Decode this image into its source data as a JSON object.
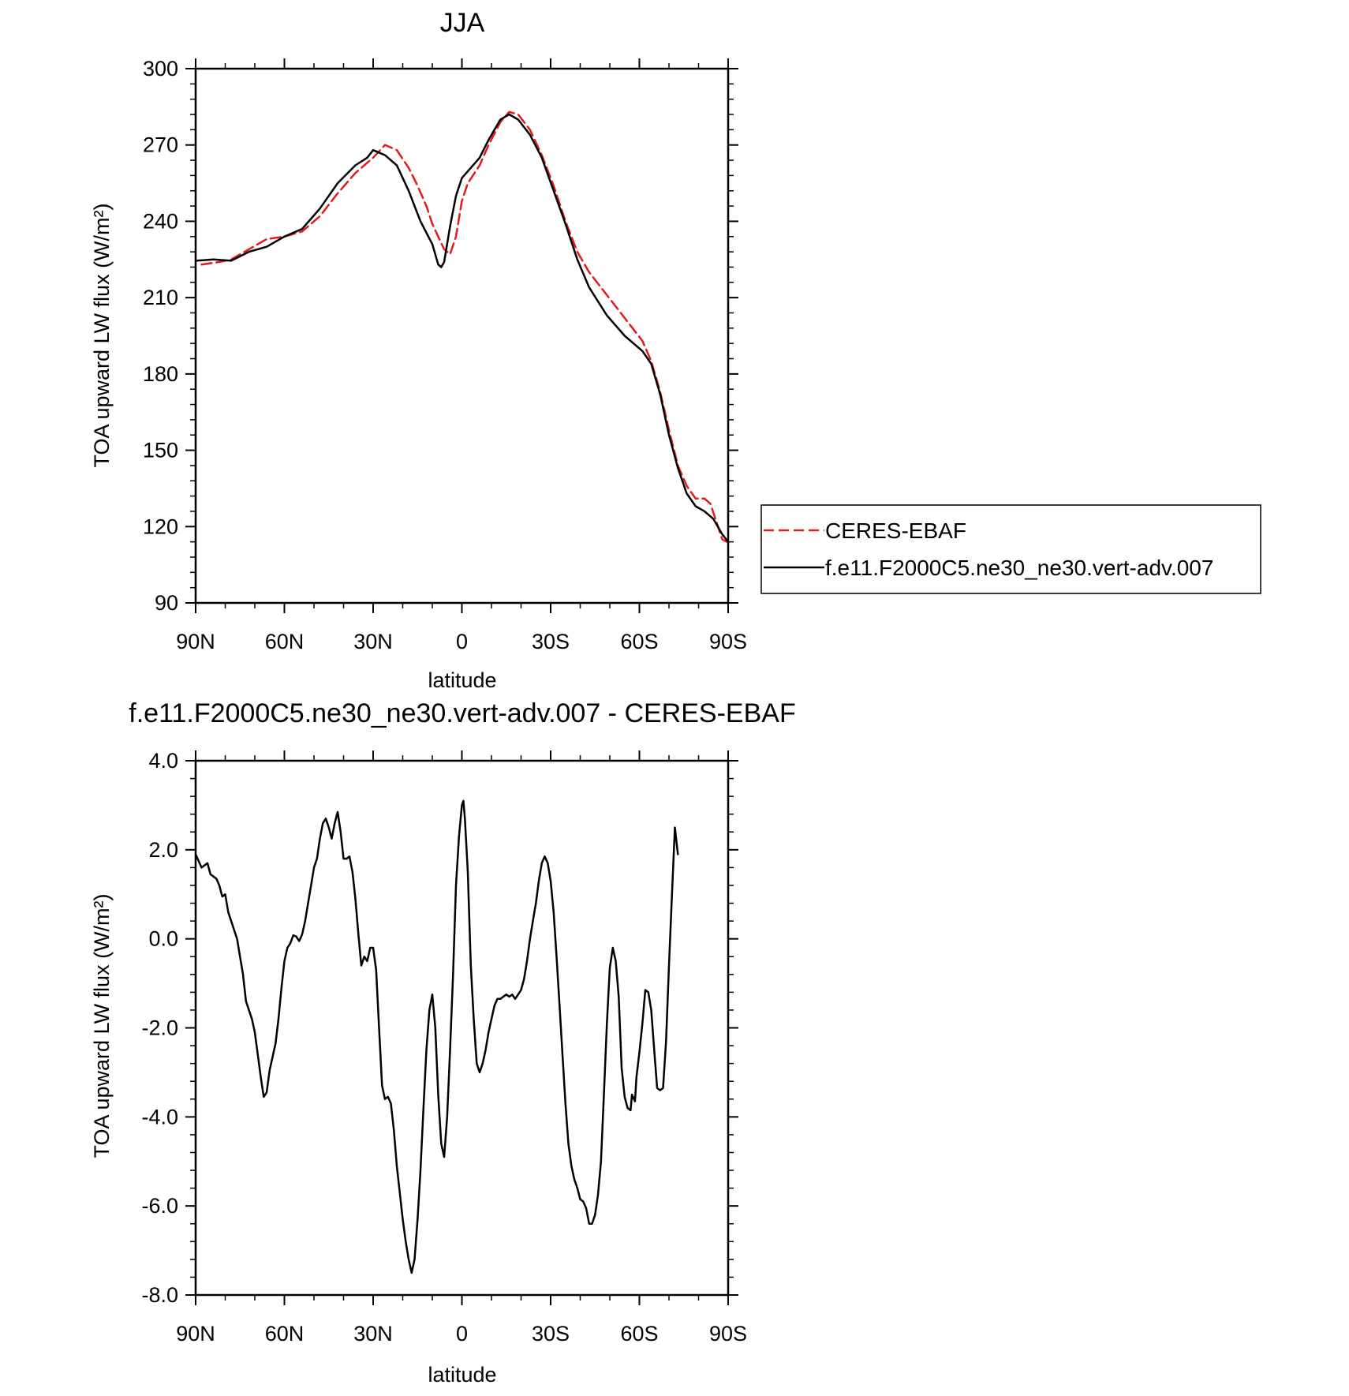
{
  "chart_data": [
    {
      "type": "line",
      "title": "JJA",
      "xlabel": "latitude",
      "ylabel": "TOA upward LW flux (W/m²)",
      "ylim": [
        90,
        300
      ],
      "xlim": [
        90,
        -90
      ],
      "xticks": [
        90,
        60,
        30,
        0,
        -30,
        -60,
        -90
      ],
      "xtick_labels": [
        "90N",
        "60N",
        "30N",
        "0",
        "30S",
        "60S",
        "90S"
      ],
      "yticks": [
        90,
        120,
        150,
        180,
        210,
        240,
        270,
        300
      ],
      "ytick_labels": [
        "90",
        "120",
        "150",
        "180",
        "210",
        "240",
        "270",
        "300"
      ],
      "legend": "right",
      "series": [
        {
          "name": "CERES-EBAF",
          "style": "dashed",
          "color": "#e41a1c",
          "points": [
            [
              88,
              223
            ],
            [
              82,
              224
            ],
            [
              78,
              225
            ],
            [
              72,
              229
            ],
            [
              66,
              233
            ],
            [
              60,
              234
            ],
            [
              54,
              236
            ],
            [
              48,
              242
            ],
            [
              42,
              251
            ],
            [
              36,
              259
            ],
            [
              30,
              265
            ],
            [
              26,
              270
            ],
            [
              22,
              268
            ],
            [
              18,
              261
            ],
            [
              15,
              254
            ],
            [
              12,
              246
            ],
            [
              10,
              239
            ],
            [
              6,
              229
            ],
            [
              4,
              227
            ],
            [
              2,
              234
            ],
            [
              0,
              248
            ],
            [
              -2,
              255
            ],
            [
              -6,
              262
            ],
            [
              -9,
              270
            ],
            [
              -13,
              279
            ],
            [
              -16,
              283
            ],
            [
              -19,
              282
            ],
            [
              -23,
              276
            ],
            [
              -27,
              266
            ],
            [
              -31,
              254
            ],
            [
              -35,
              240
            ],
            [
              -39,
              228
            ],
            [
              -43,
              220
            ],
            [
              -49,
              211
            ],
            [
              -55,
              202
            ],
            [
              -61,
              193
            ],
            [
              -64,
              185
            ],
            [
              -67,
              173
            ],
            [
              -70,
              158
            ],
            [
              -73,
              144
            ],
            [
              -76,
              136
            ],
            [
              -79,
              131
            ],
            [
              -82,
              131
            ],
            [
              -84,
              129
            ],
            [
              -86,
              122
            ],
            [
              -88,
              115
            ],
            [
              -89.5,
              114
            ]
          ]
        },
        {
          "name": "f.e11.F2000C5.ne30_ne30.vert-adv.007",
          "style": "solid",
          "color": "#000000",
          "points": [
            [
              90,
              224.5
            ],
            [
              84,
              225
            ],
            [
              78,
              224.5
            ],
            [
              72,
              228
            ],
            [
              66,
              230
            ],
            [
              60,
              234
            ],
            [
              54,
              237
            ],
            [
              48,
              245
            ],
            [
              42,
              255
            ],
            [
              36,
              262
            ],
            [
              32,
              265
            ],
            [
              30,
              268
            ],
            [
              26,
              266
            ],
            [
              22,
              262
            ],
            [
              18,
              252
            ],
            [
              14,
              240
            ],
            [
              10,
              231
            ],
            [
              8,
              223
            ],
            [
              7,
              222
            ],
            [
              6,
              224
            ],
            [
              4,
              238
            ],
            [
              2,
              250
            ],
            [
              0,
              257
            ],
            [
              -3,
              261
            ],
            [
              -6,
              265
            ],
            [
              -9,
              272
            ],
            [
              -13,
              280
            ],
            [
              -16,
              282
            ],
            [
              -19,
              280
            ],
            [
              -23,
              274
            ],
            [
              -27,
              265
            ],
            [
              -31,
              252
            ],
            [
              -35,
              239
            ],
            [
              -39,
              225
            ],
            [
              -43,
              214
            ],
            [
              -49,
              203
            ],
            [
              -55,
              195
            ],
            [
              -61,
              189
            ],
            [
              -64,
              184
            ],
            [
              -67,
              172
            ],
            [
              -70,
              156
            ],
            [
              -73,
              143
            ],
            [
              -76,
              133
            ],
            [
              -79,
              128
            ],
            [
              -82,
              126
            ],
            [
              -85,
              123
            ],
            [
              -88,
              117
            ],
            [
              -90,
              114
            ]
          ]
        }
      ]
    },
    {
      "type": "line",
      "title": "f.e11.F2000C5.ne30_ne30.vert-adv.007 - CERES-EBAF",
      "xlabel": "latitude",
      "ylabel": "TOA upward LW flux (W/m²)",
      "ylim": [
        -8,
        4
      ],
      "xlim": [
        90,
        -90
      ],
      "xticks": [
        90,
        60,
        30,
        0,
        -30,
        -60,
        -90
      ],
      "xtick_labels": [
        "90N",
        "60N",
        "30N",
        "0",
        "30S",
        "60S",
        "90S"
      ],
      "yticks": [
        -8,
        -6,
        -4,
        -2,
        0,
        2,
        4
      ],
      "ytick_labels": [
        "-8.0",
        "-6.0",
        "-4.0",
        "-2.0",
        "0.0",
        "2.0",
        "4.0"
      ],
      "series": [
        {
          "style": "solid",
          "color": "#000000",
          "points": [
            [
              90,
              1.9
            ],
            [
              88,
              1.6
            ],
            [
              86,
              1.7
            ],
            [
              85,
              1.45
            ],
            [
              83,
              1.35
            ],
            [
              82,
              1.2
            ],
            [
              81,
              0.95
            ],
            [
              80,
              1.0
            ],
            [
              79,
              0.6
            ],
            [
              76,
              0.0
            ],
            [
              74,
              -0.8
            ],
            [
              73,
              -1.4
            ],
            [
              71,
              -1.8
            ],
            [
              70,
              -2.1
            ],
            [
              68,
              -3.1
            ],
            [
              67,
              -3.55
            ],
            [
              66,
              -3.45
            ],
            [
              65,
              -2.95
            ],
            [
              63,
              -2.35
            ],
            [
              62,
              -1.8
            ],
            [
              61,
              -1.1
            ],
            [
              60,
              -0.5
            ],
            [
              59,
              -0.2
            ],
            [
              58,
              -0.1
            ],
            [
              57,
              0.08
            ],
            [
              56,
              0.05
            ],
            [
              55,
              -0.05
            ],
            [
              54,
              0.1
            ],
            [
              53,
              0.4
            ],
            [
              52,
              0.8
            ],
            [
              51,
              1.2
            ],
            [
              50,
              1.6
            ],
            [
              49,
              1.8
            ],
            [
              48,
              2.25
            ],
            [
              47,
              2.6
            ],
            [
              46,
              2.7
            ],
            [
              45,
              2.5
            ],
            [
              44,
              2.25
            ],
            [
              43,
              2.6
            ],
            [
              42,
              2.85
            ],
            [
              41,
              2.4
            ],
            [
              40,
              1.8
            ],
            [
              39,
              1.8
            ],
            [
              38,
              1.85
            ],
            [
              37,
              1.5
            ],
            [
              36,
              0.9
            ],
            [
              35,
              0.1
            ],
            [
              34,
              -0.6
            ],
            [
              33,
              -0.4
            ],
            [
              32,
              -0.5
            ],
            [
              31,
              -0.2
            ],
            [
              30,
              -0.2
            ],
            [
              29,
              -0.7
            ],
            [
              28,
              -2.0
            ],
            [
              27,
              -3.3
            ],
            [
              26,
              -3.6
            ],
            [
              25,
              -3.55
            ],
            [
              24,
              -3.7
            ],
            [
              23,
              -4.3
            ],
            [
              22,
              -5.1
            ],
            [
              20,
              -6.3
            ],
            [
              19,
              -6.8
            ],
            [
              18,
              -7.2
            ],
            [
              17,
              -7.5
            ],
            [
              16,
              -7.2
            ],
            [
              15,
              -6.3
            ],
            [
              14,
              -5.2
            ],
            [
              13,
              -3.8
            ],
            [
              12,
              -2.5
            ],
            [
              11,
              -1.6
            ],
            [
              10,
              -1.25
            ],
            [
              9,
              -2.0
            ],
            [
              8,
              -3.5
            ],
            [
              7,
              -4.6
            ],
            [
              6,
              -4.9
            ],
            [
              5,
              -4.0
            ],
            [
              4,
              -2.5
            ],
            [
              3,
              -0.8
            ],
            [
              2,
              1.2
            ],
            [
              1,
              2.3
            ],
            [
              0,
              3.0
            ],
            [
              -0.5,
              3.1
            ],
            [
              -1,
              2.7
            ],
            [
              -2,
              1.5
            ],
            [
              -3,
              -0.6
            ],
            [
              -4,
              -1.8
            ],
            [
              -5,
              -2.8
            ],
            [
              -6,
              -3.0
            ],
            [
              -7,
              -2.8
            ],
            [
              -8,
              -2.5
            ],
            [
              -9,
              -2.1
            ],
            [
              -10,
              -1.8
            ],
            [
              -11,
              -1.5
            ],
            [
              -12,
              -1.35
            ],
            [
              -13,
              -1.35
            ],
            [
              -14,
              -1.3
            ],
            [
              -15,
              -1.25
            ],
            [
              -16,
              -1.3
            ],
            [
              -17,
              -1.25
            ],
            [
              -18,
              -1.35
            ],
            [
              -19,
              -1.25
            ],
            [
              -20,
              -1.15
            ],
            [
              -21,
              -0.9
            ],
            [
              -22,
              -0.5
            ],
            [
              -23,
              0.0
            ],
            [
              -24,
              0.4
            ],
            [
              -25,
              0.8
            ],
            [
              -26,
              1.3
            ],
            [
              -27,
              1.7
            ],
            [
              -28,
              1.85
            ],
            [
              -29,
              1.7
            ],
            [
              -30,
              1.3
            ],
            [
              -31,
              0.6
            ],
            [
              -32,
              -0.4
            ],
            [
              -33,
              -1.5
            ],
            [
              -34,
              -2.6
            ],
            [
              -35,
              -3.7
            ],
            [
              -36,
              -4.6
            ],
            [
              -37,
              -5.1
            ],
            [
              -38,
              -5.4
            ],
            [
              -39,
              -5.6
            ],
            [
              -40,
              -5.85
            ],
            [
              -41,
              -5.9
            ],
            [
              -42,
              -6.05
            ],
            [
              -43,
              -6.4
            ],
            [
              -44,
              -6.4
            ],
            [
              -45,
              -6.2
            ],
            [
              -46,
              -5.75
            ],
            [
              -47,
              -5.0
            ],
            [
              -48,
              -3.5
            ],
            [
              -49,
              -1.9
            ],
            [
              -50,
              -0.65
            ],
            [
              -51,
              -0.2
            ],
            [
              -52,
              -0.5
            ],
            [
              -53,
              -1.3
            ],
            [
              -54,
              -2.9
            ],
            [
              -55,
              -3.55
            ],
            [
              -56,
              -3.8
            ],
            [
              -57,
              -3.85
            ],
            [
              -57.5,
              -3.5
            ],
            [
              -58.5,
              -3.65
            ],
            [
              -59,
              -3.1
            ],
            [
              -60,
              -2.55
            ],
            [
              -61,
              -1.9
            ],
            [
              -62,
              -1.15
            ],
            [
              -63,
              -1.2
            ],
            [
              -64,
              -1.6
            ],
            [
              -65,
              -2.5
            ],
            [
              -66,
              -3.35
            ],
            [
              -67,
              -3.4
            ],
            [
              -68,
              -3.35
            ],
            [
              -69,
              -2.3
            ],
            [
              -70,
              -0.6
            ],
            [
              -71,
              1.0
            ],
            [
              -72,
              2.5
            ],
            [
              -73,
              1.9
            ]
          ]
        }
      ]
    }
  ]
}
